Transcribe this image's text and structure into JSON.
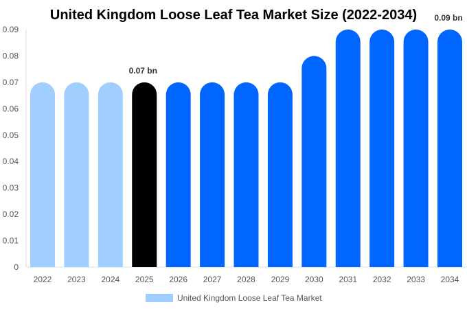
{
  "chart_data": {
    "type": "bar",
    "title": "United Kingdom Loose Leaf Tea Market Size (2022-2034)",
    "categories": [
      "2022",
      "2023",
      "2024",
      "2025",
      "2026",
      "2027",
      "2028",
      "2029",
      "2030",
      "2031",
      "2032",
      "2033",
      "2034"
    ],
    "series": [
      {
        "name": "United Kingdom Loose Leaf Tea Market",
        "values": [
          0.07,
          0.07,
          0.07,
          0.07,
          0.07,
          0.07,
          0.07,
          0.07,
          0.08,
          0.09,
          0.09,
          0.09,
          0.09
        ]
      }
    ],
    "bar_colors": [
      "#a0cfff",
      "#a0cfff",
      "#a0cfff",
      "#000000",
      "#0066ff",
      "#0066ff",
      "#0066ff",
      "#0066ff",
      "#0066ff",
      "#0066ff",
      "#0066ff",
      "#0066ff",
      "#0066ff"
    ],
    "data_labels": [
      {
        "category": "2025",
        "text": "0.07 bn"
      },
      {
        "category": "2034",
        "text": "0.09 bn"
      }
    ],
    "yticks": [
      "0",
      "0.01",
      "0.02",
      "0.03",
      "0.04",
      "0.05",
      "0.06",
      "0.07",
      "0.08",
      "0.09"
    ],
    "ylim": [
      0,
      0.09
    ],
    "xlabel": "",
    "ylabel": "",
    "grid": false,
    "legend": {
      "position": "bottom",
      "label": "United Kingdom Loose Leaf Tea Market",
      "color": "#a0cfff"
    }
  }
}
